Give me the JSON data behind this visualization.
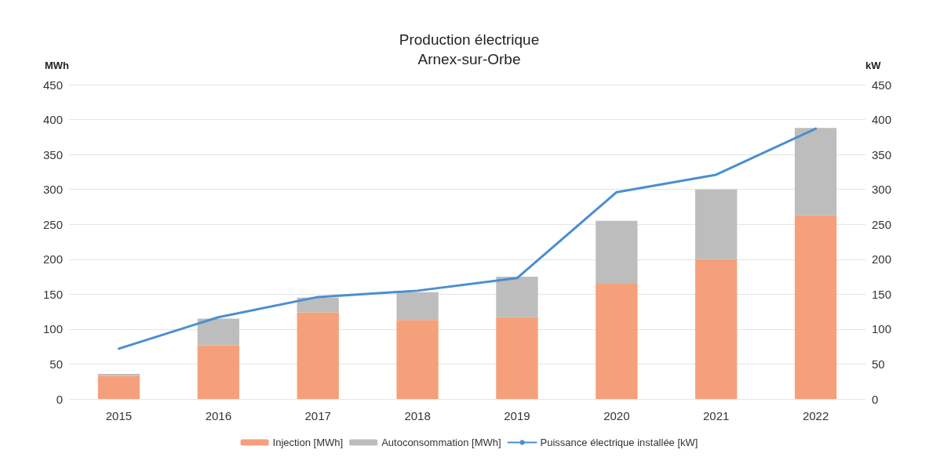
{
  "chart_data": {
    "type": "bar",
    "title": "Production électrique",
    "subtitle": "Arnex-sur-Orbe",
    "ylabel": "MWh",
    "y2label": "kW",
    "categories": [
      "2015",
      "2016",
      "2017",
      "2018",
      "2019",
      "2020",
      "2021",
      "2022"
    ],
    "stacked": true,
    "grid": "y",
    "legend": "bottom",
    "ylim": [
      0,
      450
    ],
    "yticks": [
      0,
      50,
      100,
      150,
      200,
      250,
      300,
      350,
      400,
      450
    ],
    "y2lim": [
      0,
      450
    ],
    "y2ticks": [
      0,
      50,
      100,
      150,
      200,
      250,
      300,
      350,
      400,
      450
    ],
    "series": [
      {
        "name": "Injection [MWh]",
        "color": "#f5a07a",
        "values": [
          33,
          77,
          124,
          113,
          117,
          165,
          200,
          263
        ]
      },
      {
        "name": "Autoconsommation [MWh]",
        "color": "#bdbdbd",
        "values": [
          3,
          38,
          21,
          40,
          58,
          90,
          100,
          125
        ]
      },
      {
        "name": "Puissance électrique installée [kW]",
        "type": "line",
        "axis": "y2",
        "color": "#4a8fd0",
        "marker": "none",
        "line_style": "solid",
        "values": [
          72,
          117,
          146,
          155,
          173,
          296,
          321,
          387
        ]
      }
    ]
  }
}
